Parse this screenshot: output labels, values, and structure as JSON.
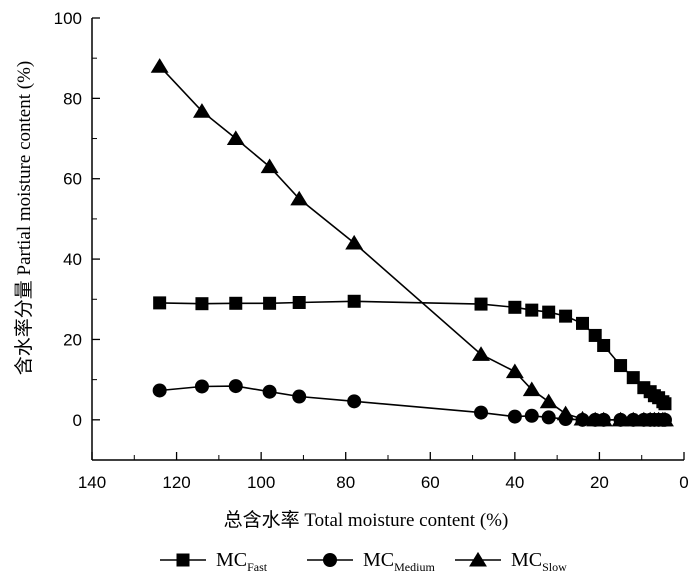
{
  "chart_data": {
    "type": "line",
    "title": "",
    "xlabel": "总含水率 Total moisture content (%)",
    "ylabel": "含水率分量 Partial moisture content (%)",
    "xlim": [
      140,
      0
    ],
    "ylim": [
      -10,
      100
    ],
    "x_reversed": true,
    "xticks": [
      140,
      120,
      100,
      80,
      60,
      40,
      20,
      0
    ],
    "yticks": [
      0,
      20,
      40,
      60,
      80,
      100
    ],
    "grid": false,
    "legend_position": "bottom",
    "series": [
      {
        "name": "MC",
        "name_sub": "Fast",
        "marker": "square",
        "color": "#000000",
        "points": [
          [
            124,
            29.1
          ],
          [
            114,
            28.9
          ],
          [
            106,
            29.0
          ],
          [
            98,
            29.0
          ],
          [
            91,
            29.2
          ],
          [
            78,
            29.5
          ],
          [
            48,
            28.8
          ],
          [
            40,
            28.0
          ],
          [
            36,
            27.3
          ],
          [
            32,
            26.8
          ],
          [
            28,
            25.8
          ],
          [
            24,
            24.0
          ],
          [
            21,
            21.0
          ],
          [
            19,
            18.5
          ],
          [
            15,
            13.5
          ],
          [
            12,
            10.5
          ],
          [
            9.5,
            8.0
          ],
          [
            8,
            7.0
          ],
          [
            7,
            6.0
          ],
          [
            6,
            5.5
          ],
          [
            5,
            4.5
          ],
          [
            4.5,
            4.0
          ]
        ]
      },
      {
        "name": "MC",
        "name_sub": "Medium",
        "marker": "circle",
        "color": "#000000",
        "points": [
          [
            124,
            7.3
          ],
          [
            114,
            8.3
          ],
          [
            106,
            8.4
          ],
          [
            98,
            7.0
          ],
          [
            91,
            5.8
          ],
          [
            78,
            4.6
          ],
          [
            48,
            1.8
          ],
          [
            40,
            0.8
          ],
          [
            36,
            1.0
          ],
          [
            32,
            0.6
          ],
          [
            28,
            0.2
          ],
          [
            24,
            0.0
          ],
          [
            21,
            0.0
          ],
          [
            19,
            0.0
          ],
          [
            15,
            0.0
          ],
          [
            12,
            0.0
          ],
          [
            9.5,
            0.0
          ],
          [
            8,
            0.0
          ],
          [
            7,
            0.0
          ],
          [
            6,
            0.0
          ],
          [
            5,
            0.0
          ],
          [
            4.5,
            0.0
          ]
        ]
      },
      {
        "name": "MC",
        "name_sub": "Slow",
        "marker": "triangle",
        "color": "#000000",
        "points": [
          [
            124,
            88.0
          ],
          [
            114,
            76.8
          ],
          [
            106,
            70.0
          ],
          [
            98,
            63.0
          ],
          [
            91,
            55.0
          ],
          [
            78,
            44.0
          ],
          [
            48,
            16.3
          ],
          [
            40,
            12.0
          ],
          [
            36,
            7.5
          ],
          [
            32,
            4.5
          ],
          [
            28,
            1.5
          ],
          [
            24,
            0.2
          ],
          [
            21,
            0.0
          ],
          [
            19,
            0.0
          ],
          [
            15,
            0.0
          ],
          [
            12,
            0.0
          ],
          [
            9.5,
            0.0
          ],
          [
            8,
            0.0
          ],
          [
            7,
            0.0
          ],
          [
            6,
            0.0
          ],
          [
            5,
            0.0
          ],
          [
            4.5,
            0.0
          ]
        ]
      }
    ]
  }
}
